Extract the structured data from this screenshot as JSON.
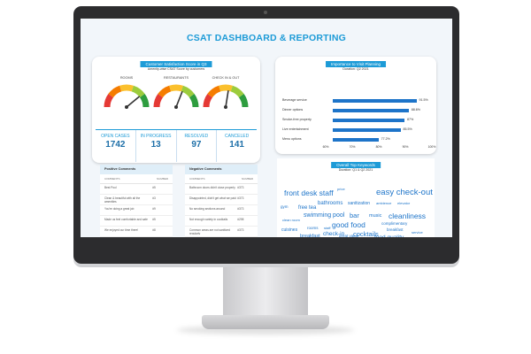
{
  "dashboard": {
    "title": "CSAT DASHBOARD & REPORTING",
    "csat_card": {
      "header": "Customer Satisfaction Score in Q3",
      "subtitle": "Amenity-wise CSAT Score by customers",
      "gauges": [
        {
          "label": "ROOMS",
          "level": 0.78
        },
        {
          "label": "RESTAURANTS",
          "level": 0.62
        },
        {
          "label": "CHECK IN & OUT",
          "level": 0.55
        }
      ],
      "stats": [
        {
          "label": "OPEN CASES",
          "value": "1742"
        },
        {
          "label": "IN PROGRESS",
          "value": "13"
        },
        {
          "label": "RESOLVED",
          "value": "97"
        },
        {
          "label": "CANCELED",
          "value": "141"
        }
      ]
    },
    "importance_card": {
      "header": "Importance to Visit Planning",
      "subtitle": "Duration: Q2 2021",
      "chart_data": {
        "type": "bar",
        "orientation": "horizontal",
        "categories": [
          "Beverage service",
          "Dinner options",
          "Smoke-free property",
          "Live entertainment",
          "Menu options"
        ],
        "values": [
          91.5,
          88.6,
          87,
          85.5,
          77.2
        ],
        "value_labels": [
          "91.5%",
          "88.6%",
          "87%",
          "85.5%",
          "77.2%"
        ],
        "xlim": [
          60,
          100
        ],
        "x_ticks": [
          "60%",
          "70%",
          "80%",
          "90%",
          "100%"
        ],
        "color": "#1d74c9"
      }
    },
    "positive_comments": {
      "title": "Positive Comments",
      "columns": [
        "COMMENTS",
        "NUMBER"
      ],
      "rows": [
        {
          "comment": "Best Pool",
          "number": "#5"
        },
        {
          "comment": "Clean & beautiful with all the amenities",
          "number": "#3"
        },
        {
          "comment": "You're doing a great job",
          "number": "#9"
        },
        {
          "comment": "Made us feel comfortable and safe",
          "number": "#5"
        },
        {
          "comment": "We enjoyed our time there!",
          "number": "#8"
        },
        {
          "comment": "Continue to do the good work",
          "number": "#1"
        }
      ]
    },
    "negative_comments": {
      "title": "Negative Comments",
      "columns": [
        "COMMENTS",
        "NUMBER"
      ],
      "rows": [
        {
          "comment": "Bathroom doors didn't close properly",
          "number": "#373"
        },
        {
          "comment": "Disappointed, didn't get what we paid",
          "number": "#373"
        },
        {
          "comment": "No smoking sections around",
          "number": "#373"
        },
        {
          "comment": "Not enough variety in cocktails",
          "number": "#298"
        },
        {
          "comment": "Common areas are not sanitized regularly",
          "number": "#373"
        },
        {
          "comment": "Expensive for the service",
          "number": "#373"
        }
      ]
    },
    "keywords": {
      "title": "Overall Top Keywords",
      "subtitle": "Duration: Q1 & Q2 2021",
      "words": [
        {
          "text": "front desk staff",
          "size": 8.5
        },
        {
          "text": "price",
          "size": 4
        },
        {
          "text": "easy check-out",
          "size": 9.5
        },
        {
          "text": "bathrooms",
          "size": 6
        },
        {
          "text": "sanitization",
          "size": 5
        },
        {
          "text": "gym",
          "size": 4.5
        },
        {
          "text": "free tea",
          "size": 6
        },
        {
          "text": "ambience",
          "size": 4
        },
        {
          "text": "elevator",
          "size": 4
        },
        {
          "text": "swimming pool",
          "size": 7
        },
        {
          "text": "bar",
          "size": 7.5
        },
        {
          "text": "music",
          "size": 5.5
        },
        {
          "text": "cleanliness",
          "size": 8.5
        },
        {
          "text": "clean room",
          "size": 4
        },
        {
          "text": "good food",
          "size": 8.5
        },
        {
          "text": "complimentary",
          "size": 4.5
        },
        {
          "text": "cuisines",
          "size": 5
        },
        {
          "text": "rooms",
          "size": 4.5
        },
        {
          "text": "staff",
          "size": 4
        },
        {
          "text": "check-in",
          "size": 6.5
        },
        {
          "text": "cocktails",
          "size": 7.5
        },
        {
          "text": "breakfast",
          "size": 4.5
        },
        {
          "text": "service",
          "size": 4
        },
        {
          "text": "breakfast",
          "size": 5.5
        },
        {
          "text": "great value",
          "size": 4.5
        },
        {
          "text": "food quality",
          "size": 6.5
        },
        {
          "text": "lobby",
          "size": 5
        },
        {
          "text": "restaurant",
          "size": 5
        }
      ]
    }
  }
}
